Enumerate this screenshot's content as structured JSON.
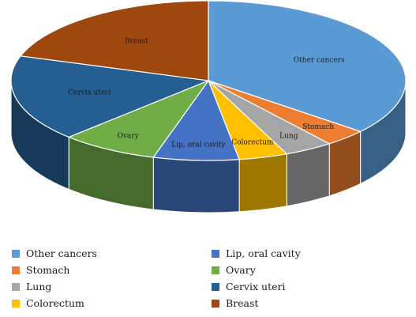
{
  "chart_data": {
    "type": "pie",
    "style": "3d",
    "title": "",
    "slices": [
      {
        "label": "Other cancers",
        "value": 36.0,
        "color": "#5b9bd5"
      },
      {
        "label": "Stomach",
        "value": 3.5,
        "color": "#ed7d31"
      },
      {
        "label": "Lung",
        "value": 4.0,
        "color": "#a5a5a5"
      },
      {
        "label": "Colorectum",
        "value": 4.0,
        "color": "#ffc000"
      },
      {
        "label": "Lip, oral cavity",
        "value": 7.0,
        "color": "#4472c4"
      },
      {
        "label": "Ovary",
        "value": 8.0,
        "color": "#70ad47"
      },
      {
        "label": "Cervix uteri",
        "value": 17.5,
        "color": "#255e91"
      },
      {
        "label": "Breast",
        "value": 20.0,
        "color": "#9e480e"
      }
    ],
    "legend": {
      "placement": "bottom",
      "columns": [
        [
          "Other cancers",
          "Stomach",
          "Lung",
          "Colorectum"
        ],
        [
          "Lip, oral cavity",
          "Ovary",
          "Cervix uteri",
          "Breast"
        ]
      ]
    }
  }
}
